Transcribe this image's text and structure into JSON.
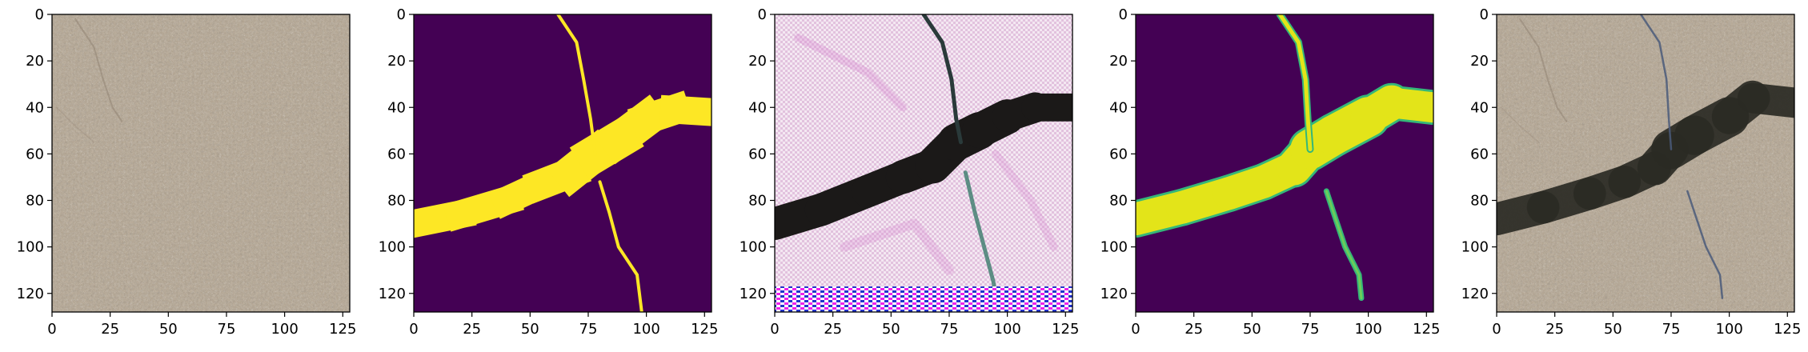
{
  "figure": {
    "panel_count": 5,
    "background": "#ffffff"
  },
  "chart_data": [
    {
      "type": "heatmap",
      "content": "photo of concrete surface",
      "xlim": [
        0,
        128
      ],
      "ylim": [
        128,
        0
      ],
      "x_ticks": [
        0,
        25,
        50,
        75,
        100,
        125
      ],
      "y_ticks": [
        0,
        20,
        40,
        60,
        80,
        100,
        120
      ],
      "grid": false,
      "colors": {
        "base": "#c6b9a6",
        "dark": "#a8998a"
      }
    },
    {
      "type": "heatmap",
      "content": "binary crack mask (viridis)",
      "xlim": [
        0,
        128
      ],
      "ylim": [
        128,
        0
      ],
      "x_ticks": [
        0,
        25,
        50,
        75,
        100,
        125
      ],
      "y_ticks": [
        0,
        20,
        40,
        60,
        80,
        100,
        120
      ],
      "grid": false,
      "colors": {
        "background": "#440154",
        "crack": "#fde725"
      },
      "crack_main_path": [
        [
          0,
          90
        ],
        [
          20,
          86
        ],
        [
          40,
          80
        ],
        [
          55,
          73
        ],
        [
          68,
          68
        ],
        [
          78,
          60
        ],
        [
          88,
          54
        ],
        [
          100,
          45
        ],
        [
          112,
          41
        ],
        [
          128,
          42
        ]
      ],
      "crack_main_width": [
        12,
        12,
        12,
        12,
        14,
        16,
        16,
        14,
        12,
        12
      ],
      "crack_thin_upper": [
        [
          62,
          0
        ],
        [
          70,
          12
        ],
        [
          73,
          28
        ],
        [
          76,
          45
        ],
        [
          78,
          60
        ]
      ],
      "crack_thin_lower": [
        [
          80,
          72
        ],
        [
          84,
          85
        ],
        [
          88,
          100
        ],
        [
          96,
          112
        ],
        [
          98,
          128
        ]
      ]
    },
    {
      "type": "heatmap",
      "content": "generated crack image with checkerboard artifacts",
      "xlim": [
        0,
        128
      ],
      "ylim": [
        128,
        0
      ],
      "x_ticks": [
        0,
        25,
        50,
        75,
        100,
        125
      ],
      "y_ticks": [
        0,
        20,
        40,
        60,
        80,
        100,
        120
      ],
      "grid": false,
      "colors": {
        "background": "#eddde8",
        "crack": "#1b1918",
        "tint": "#d88ad0"
      },
      "crack_main_path": [
        [
          0,
          90
        ],
        [
          20,
          84
        ],
        [
          40,
          76
        ],
        [
          55,
          70
        ],
        [
          68,
          65
        ],
        [
          78,
          55
        ],
        [
          88,
          50
        ],
        [
          100,
          44
        ],
        [
          112,
          40
        ],
        [
          128,
          40
        ]
      ],
      "crack_main_width": [
        14,
        14,
        14,
        14,
        15,
        16,
        16,
        14,
        12,
        12
      ],
      "crack_thin_upper": [
        [
          64,
          0
        ],
        [
          72,
          12
        ],
        [
          76,
          28
        ],
        [
          78,
          45
        ],
        [
          80,
          55
        ]
      ],
      "crack_thin_lower": [
        [
          82,
          68
        ],
        [
          86,
          85
        ],
        [
          90,
          100
        ],
        [
          94,
          115
        ],
        [
          96,
          128
        ]
      ]
    },
    {
      "type": "heatmap",
      "content": "predicted crack probability (viridis)",
      "xlim": [
        0,
        128
      ],
      "ylim": [
        128,
        0
      ],
      "x_ticks": [
        0,
        25,
        50,
        75,
        100,
        125
      ],
      "y_ticks": [
        0,
        20,
        40,
        60,
        80,
        100,
        120
      ],
      "grid": false,
      "colors": {
        "background": "#440154",
        "crack": "#e3e419",
        "edge": "#35b779"
      },
      "crack_main_path": [
        [
          0,
          88
        ],
        [
          20,
          83
        ],
        [
          40,
          77
        ],
        [
          55,
          72
        ],
        [
          68,
          66
        ],
        [
          75,
          58
        ],
        [
          85,
          52
        ],
        [
          100,
          44
        ],
        [
          110,
          38
        ],
        [
          128,
          40
        ]
      ],
      "crack_main_width": [
        14,
        14,
        14,
        14,
        14,
        16,
        18,
        16,
        14,
        12
      ],
      "crack_thin_upper": [
        [
          62,
          0
        ],
        [
          70,
          12
        ],
        [
          73,
          28
        ],
        [
          74,
          45
        ],
        [
          75,
          58
        ]
      ],
      "crack_thin_lower": [
        [
          82,
          76
        ],
        [
          86,
          88
        ],
        [
          90,
          100
        ],
        [
          96,
          112
        ],
        [
          97,
          122
        ]
      ]
    },
    {
      "type": "heatmap",
      "content": "concrete photo with crack overlay",
      "xlim": [
        0,
        128
      ],
      "ylim": [
        128,
        0
      ],
      "x_ticks": [
        0,
        25,
        50,
        75,
        100,
        125
      ],
      "y_ticks": [
        0,
        20,
        40,
        60,
        80,
        100,
        120
      ],
      "grid": false,
      "colors": {
        "base": "#c6b9a6",
        "crack": "#2a2a24",
        "thin": "#4a5a7a"
      },
      "crack_main_path": [
        [
          0,
          88
        ],
        [
          20,
          83
        ],
        [
          40,
          77
        ],
        [
          55,
          72
        ],
        [
          68,
          66
        ],
        [
          75,
          58
        ],
        [
          85,
          52
        ],
        [
          100,
          44
        ],
        [
          110,
          36
        ],
        [
          128,
          38
        ]
      ],
      "crack_main_width": [
        14,
        14,
        14,
        14,
        14,
        16,
        18,
        16,
        14,
        12
      ],
      "crack_thin_upper": [
        [
          62,
          0
        ],
        [
          70,
          12
        ],
        [
          73,
          28
        ],
        [
          74,
          45
        ],
        [
          75,
          58
        ]
      ],
      "crack_thin_lower": [
        [
          82,
          76
        ],
        [
          86,
          88
        ],
        [
          90,
          100
        ],
        [
          96,
          112
        ],
        [
          97,
          122
        ]
      ]
    }
  ]
}
